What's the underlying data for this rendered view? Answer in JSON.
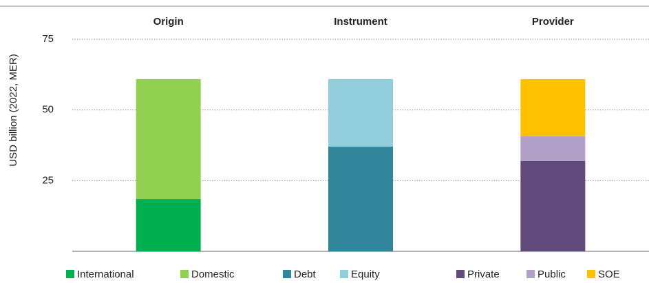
{
  "chart_data": {
    "type": "stacked_bar",
    "y_label": "USD billion (2022, MER)",
    "categories": [
      "Origin",
      "Instrument",
      "Provider"
    ],
    "series": [
      {
        "name": "International",
        "color": "#00b050",
        "values": [
          18.5,
          null,
          null
        ]
      },
      {
        "name": "Domestic",
        "color": "#92d050",
        "values": [
          42.4,
          null,
          null
        ]
      },
      {
        "name": "Debt",
        "color": "#31869b",
        "values": [
          null,
          37.0,
          null
        ]
      },
      {
        "name": "Equity",
        "color": "#92cddc",
        "values": [
          null,
          23.9,
          null
        ]
      },
      {
        "name": "Private",
        "color": "#604a7b",
        "values": [
          null,
          null,
          31.9
        ]
      },
      {
        "name": "Public",
        "color": "#b1a0c7",
        "values": [
          null,
          null,
          8.8
        ]
      },
      {
        "name": "SOE",
        "color": "#ffc000",
        "values": [
          null,
          null,
          20.2
        ]
      }
    ],
    "ylim": [
      0,
      75
    ],
    "yticks": [
      25,
      50,
      75
    ],
    "grid": true,
    "legend": "bottom"
  }
}
